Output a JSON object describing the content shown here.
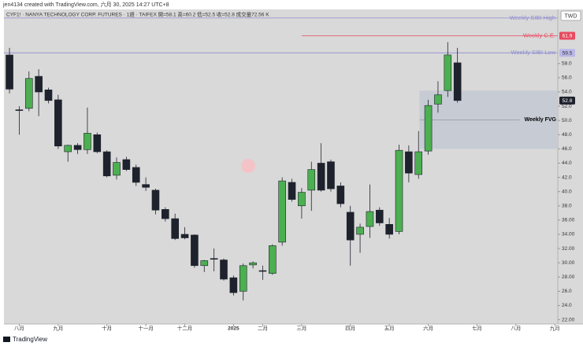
{
  "caption": "jen4134 created with TradingView.com, 六月 30, 2025 14:27 UTC+8",
  "footer": "TradingView",
  "chart_data": {
    "type": "candlestick",
    "title": "CYF1! · NANYA TECHNOLOGY CORP. FUTURES · 1週 · TAIFEX  開=58.1  高=60.2  低=52.5  收=52.8  成交量72.56 K",
    "currency": "TWD",
    "up_color": "#4caf50",
    "down_color": "#1e222d",
    "open": [
      59.2,
      51.5,
      51.7,
      56.2,
      54.3,
      52.9,
      45.6,
      46.5,
      45.9,
      48.0,
      45.6,
      42.3,
      44.5,
      43.4,
      41.0,
      40.2,
      37.5,
      36.2,
      34.0,
      33.9,
      29.6,
      30.6,
      30.4,
      27.9,
      26.0,
      29.7,
      28.9,
      28.5,
      32.9,
      41.3,
      38.0,
      40.2,
      44.0,
      44.2,
      40.8,
      37.1,
      34.0,
      35.1,
      37.4,
      35.4,
      34.4,
      45.6,
      42.4,
      45.7,
      52.3,
      54.2,
      58.1
    ],
    "high": [
      60.2,
      52.0,
      56.9,
      57.2,
      54.6,
      53.6,
      46.6,
      46.8,
      51.8,
      48.3,
      45.8,
      44.8,
      44.9,
      43.8,
      42.0,
      40.4,
      37.8,
      36.9,
      35.0,
      34.0,
      30.4,
      32.0,
      30.6,
      28.2,
      29.9,
      30.2,
      29.6,
      32.6,
      42.0,
      41.8,
      40.5,
      44.2,
      46.8,
      44.5,
      41.3,
      38.0,
      35.5,
      41.0,
      37.8,
      36.3,
      46.6,
      46.5,
      48.5,
      52.9,
      55.5,
      61.0,
      60.2
    ],
    "low": [
      53.8,
      48.0,
      51.3,
      50.6,
      52.4,
      46.0,
      44.2,
      45.3,
      45.3,
      45.4,
      42.0,
      41.7,
      42.9,
      40.8,
      40.1,
      36.8,
      35.8,
      33.2,
      33.3,
      29.3,
      28.7,
      28.8,
      27.5,
      25.4,
      24.7,
      29.2,
      27.6,
      28.3,
      32.4,
      38.6,
      36.2,
      37.3,
      40.0,
      40.0,
      37.8,
      29.6,
      31.4,
      33.5,
      35.2,
      33.4,
      34.0,
      41.3,
      41.8,
      45.2,
      51.1,
      53.3,
      52.5
    ],
    "close": [
      54.4,
      51.4,
      55.9,
      54.0,
      52.8,
      46.4,
      46.5,
      45.9,
      48.2,
      45.6,
      42.2,
      44.1,
      43.1,
      41.3,
      40.6,
      37.4,
      36.2,
      33.4,
      33.5,
      29.6,
      30.3,
      30.5,
      27.7,
      25.8,
      29.6,
      30.0,
      28.8,
      32.4,
      41.5,
      38.9,
      39.9,
      43.1,
      40.2,
      40.4,
      38.3,
      33.2,
      35.0,
      37.2,
      35.6,
      34.0,
      45.8,
      42.6,
      45.6,
      52.1,
      53.6,
      59.2,
      52.8
    ],
    "xlim": [
      -0.57,
      56.3
    ],
    "xticks": [
      {
        "value": 1,
        "label": "八月"
      },
      {
        "value": 5,
        "label": "九月"
      },
      {
        "value": 10,
        "label": "十月"
      },
      {
        "value": 14,
        "label": "十一月"
      },
      {
        "value": 18,
        "label": "十二月"
      },
      {
        "value": 23,
        "label": "2025"
      },
      {
        "value": 26,
        "label": "二月"
      },
      {
        "value": 30,
        "label": "三月"
      },
      {
        "value": 35,
        "label": "四月"
      },
      {
        "value": 39,
        "label": "五月"
      },
      {
        "value": 43,
        "label": "六月"
      },
      {
        "value": 48,
        "label": "七月"
      },
      {
        "value": 52,
        "label": "八月"
      },
      {
        "value": 56,
        "label": "九月"
      }
    ],
    "ylim": [
      21.4,
      65.6
    ],
    "yticks": [
      {
        "value": 22,
        "label": "22.00"
      },
      {
        "value": 24,
        "label": "24.0"
      },
      {
        "value": 26,
        "label": "26.0"
      },
      {
        "value": 28,
        "label": "28.00"
      },
      {
        "value": 30,
        "label": "30.00"
      },
      {
        "value": 32,
        "label": "32.00"
      },
      {
        "value": 34,
        "label": "34.00"
      },
      {
        "value": 36,
        "label": "36.00"
      },
      {
        "value": 38,
        "label": "38.0"
      },
      {
        "value": 40,
        "label": "40.0"
      },
      {
        "value": 42,
        "label": "42.0"
      },
      {
        "value": 44,
        "label": "44.0"
      },
      {
        "value": 46,
        "label": "46.0"
      },
      {
        "value": 48,
        "label": "48.0"
      },
      {
        "value": 50,
        "label": "50.0"
      },
      {
        "value": 52,
        "label": "52.0"
      },
      {
        "value": 54,
        "label": "54.0"
      },
      {
        "value": 56,
        "label": "56.0"
      },
      {
        "value": 58,
        "label": "58.0"
      }
    ],
    "levels": [
      {
        "name": "Weekly SIBI High",
        "value": 64.4,
        "color": "#8e8ccf"
      },
      {
        "name": "Weekly C.E.",
        "value": 61.9,
        "color": "#e84a5f",
        "start": 30
      },
      {
        "name": "Weekly SIBI Low",
        "value": 59.5,
        "color": "#8e8ccf"
      }
    ],
    "zone": {
      "name": "Weekly FVG",
      "top": 54.2,
      "bottom": 46.0,
      "start": 42.1,
      "color": "#c6cbd4"
    }
  }
}
